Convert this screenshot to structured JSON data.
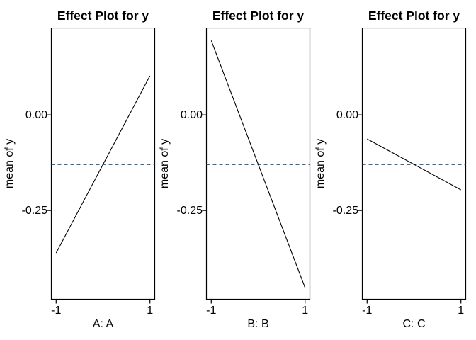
{
  "figure": {
    "background": "#ffffff"
  },
  "colors": {
    "line": "#000000",
    "reference_line": "#35506b",
    "frame": "#000000",
    "text": "#000000"
  },
  "chart_data": [
    {
      "type": "line",
      "title": "Effect Plot for y",
      "xlabel": "A: A",
      "ylabel": "mean of y",
      "x": [
        -1,
        1
      ],
      "y": [
        -0.361,
        0.102
      ],
      "xlim": [
        -1.11,
        1.11
      ],
      "ylim": [
        -0.483,
        0.228
      ],
      "xticks": [
        -1,
        1
      ],
      "xtick_labels": [
        "-1",
        "1"
      ],
      "yticks": [
        0,
        -0.25
      ],
      "ytick_labels": [
        "0.00",
        "-0.25"
      ],
      "reference_line_y": -0.13,
      "grid": false,
      "legend": null
    },
    {
      "type": "line",
      "title": "Effect Plot for y",
      "xlabel": "B: B",
      "ylabel": "mean of y",
      "x": [
        -1,
        1
      ],
      "y": [
        0.194,
        -0.452
      ],
      "xlim": [
        -1.11,
        1.11
      ],
      "ylim": [
        -0.483,
        0.228
      ],
      "xticks": [
        -1,
        1
      ],
      "xtick_labels": [
        "-1",
        "1"
      ],
      "yticks": [
        0,
        -0.25
      ],
      "ytick_labels": [
        "0.00",
        "-0.25"
      ],
      "reference_line_y": -0.13,
      "grid": false,
      "legend": null
    },
    {
      "type": "line",
      "title": "Effect Plot for y",
      "xlabel": "C: C",
      "ylabel": "mean of y",
      "x": [
        -1,
        1
      ],
      "y": [
        -0.063,
        -0.196
      ],
      "xlim": [
        -1.11,
        1.11
      ],
      "ylim": [
        -0.483,
        0.228
      ],
      "xticks": [
        -1,
        1
      ],
      "xtick_labels": [
        "-1",
        "1"
      ],
      "yticks": [
        0,
        -0.25
      ],
      "ytick_labels": [
        "0.00",
        "-0.25"
      ],
      "reference_line_y": -0.13,
      "grid": false,
      "legend": null
    }
  ]
}
